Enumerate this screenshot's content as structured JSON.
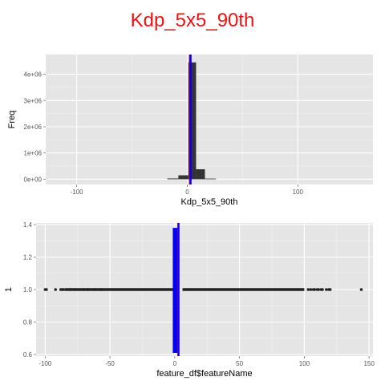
{
  "title": "Kdp_5x5_90th",
  "colors": {
    "panel": "#e5e5e5",
    "grid_major": "#ffffff",
    "grid_minor": "#f2f2f2",
    "bars": "#333333",
    "mean_line": "#0000ff",
    "median_line": "#ff0000",
    "points": "#222222",
    "title": "#ee1111"
  },
  "chart_data": [
    {
      "type": "bar",
      "subtype": "histogram",
      "xlabel": "Kdp_5x5_90th",
      "ylabel": "Freq",
      "xlim": [
        -128,
        168
      ],
      "ylim": [
        -200000,
        4750000
      ],
      "x_ticks": [
        -100,
        0,
        100
      ],
      "x_tick_labels": [
        "-100",
        "0",
        "100"
      ],
      "y_ticks": [
        0,
        1000000,
        2000000,
        3000000,
        4000000
      ],
      "y_tick_labels": [
        "0e+00",
        "1e+06",
        "2e+06",
        "3e+06",
        "4e+06"
      ],
      "bins": [
        {
          "x0": -18,
          "x1": -8,
          "count": 30000
        },
        {
          "x0": -8,
          "x1": 1,
          "count": 150000
        },
        {
          "x0": 1,
          "x1": 8,
          "count": 4450000
        },
        {
          "x0": 8,
          "x1": 16,
          "count": 380000
        },
        {
          "x0": 16,
          "x1": 26,
          "count": 25000
        }
      ],
      "vlines": [
        {
          "x": 2.5,
          "color": "#ff0000"
        },
        {
          "x": 3,
          "color": "#0000ff"
        }
      ],
      "grid": true
    },
    {
      "type": "scatter",
      "xlabel": "feature_df$featureName",
      "ylabel": "1",
      "xlim": [
        -107,
        153
      ],
      "ylim": [
        0.59,
        1.41
      ],
      "x_ticks": [
        -100,
        -50,
        0,
        50,
        100,
        150
      ],
      "x_tick_labels": [
        "-100",
        "-50",
        "0",
        "50",
        "100",
        "150"
      ],
      "y_ticks": [
        0.6,
        0.8,
        1.0,
        1.2,
        1.4
      ],
      "y_tick_labels": [
        "0.6",
        "0.8",
        "1.0",
        "1.2",
        "1.4"
      ],
      "y_value": 1.0,
      "dense_segments": [
        {
          "x0": -85,
          "x1": 1
        },
        {
          "x0": 6,
          "x1": 100
        }
      ],
      "scattered_points": [
        -100,
        -99,
        -92,
        -88,
        -87,
        -86,
        -80,
        -77,
        -70,
        -67,
        -62,
        -57,
        103,
        105,
        107,
        108,
        110,
        111,
        113,
        114,
        117,
        119,
        120,
        144
      ],
      "box": {
        "x0": -1.5,
        "x1": 3.5,
        "y0": 0.61,
        "y1": 1.38
      },
      "vlines": [
        {
          "x": 2.5,
          "color": "#ff0000"
        },
        {
          "x": 3,
          "color": "#0000ff"
        }
      ],
      "grid": true
    }
  ]
}
